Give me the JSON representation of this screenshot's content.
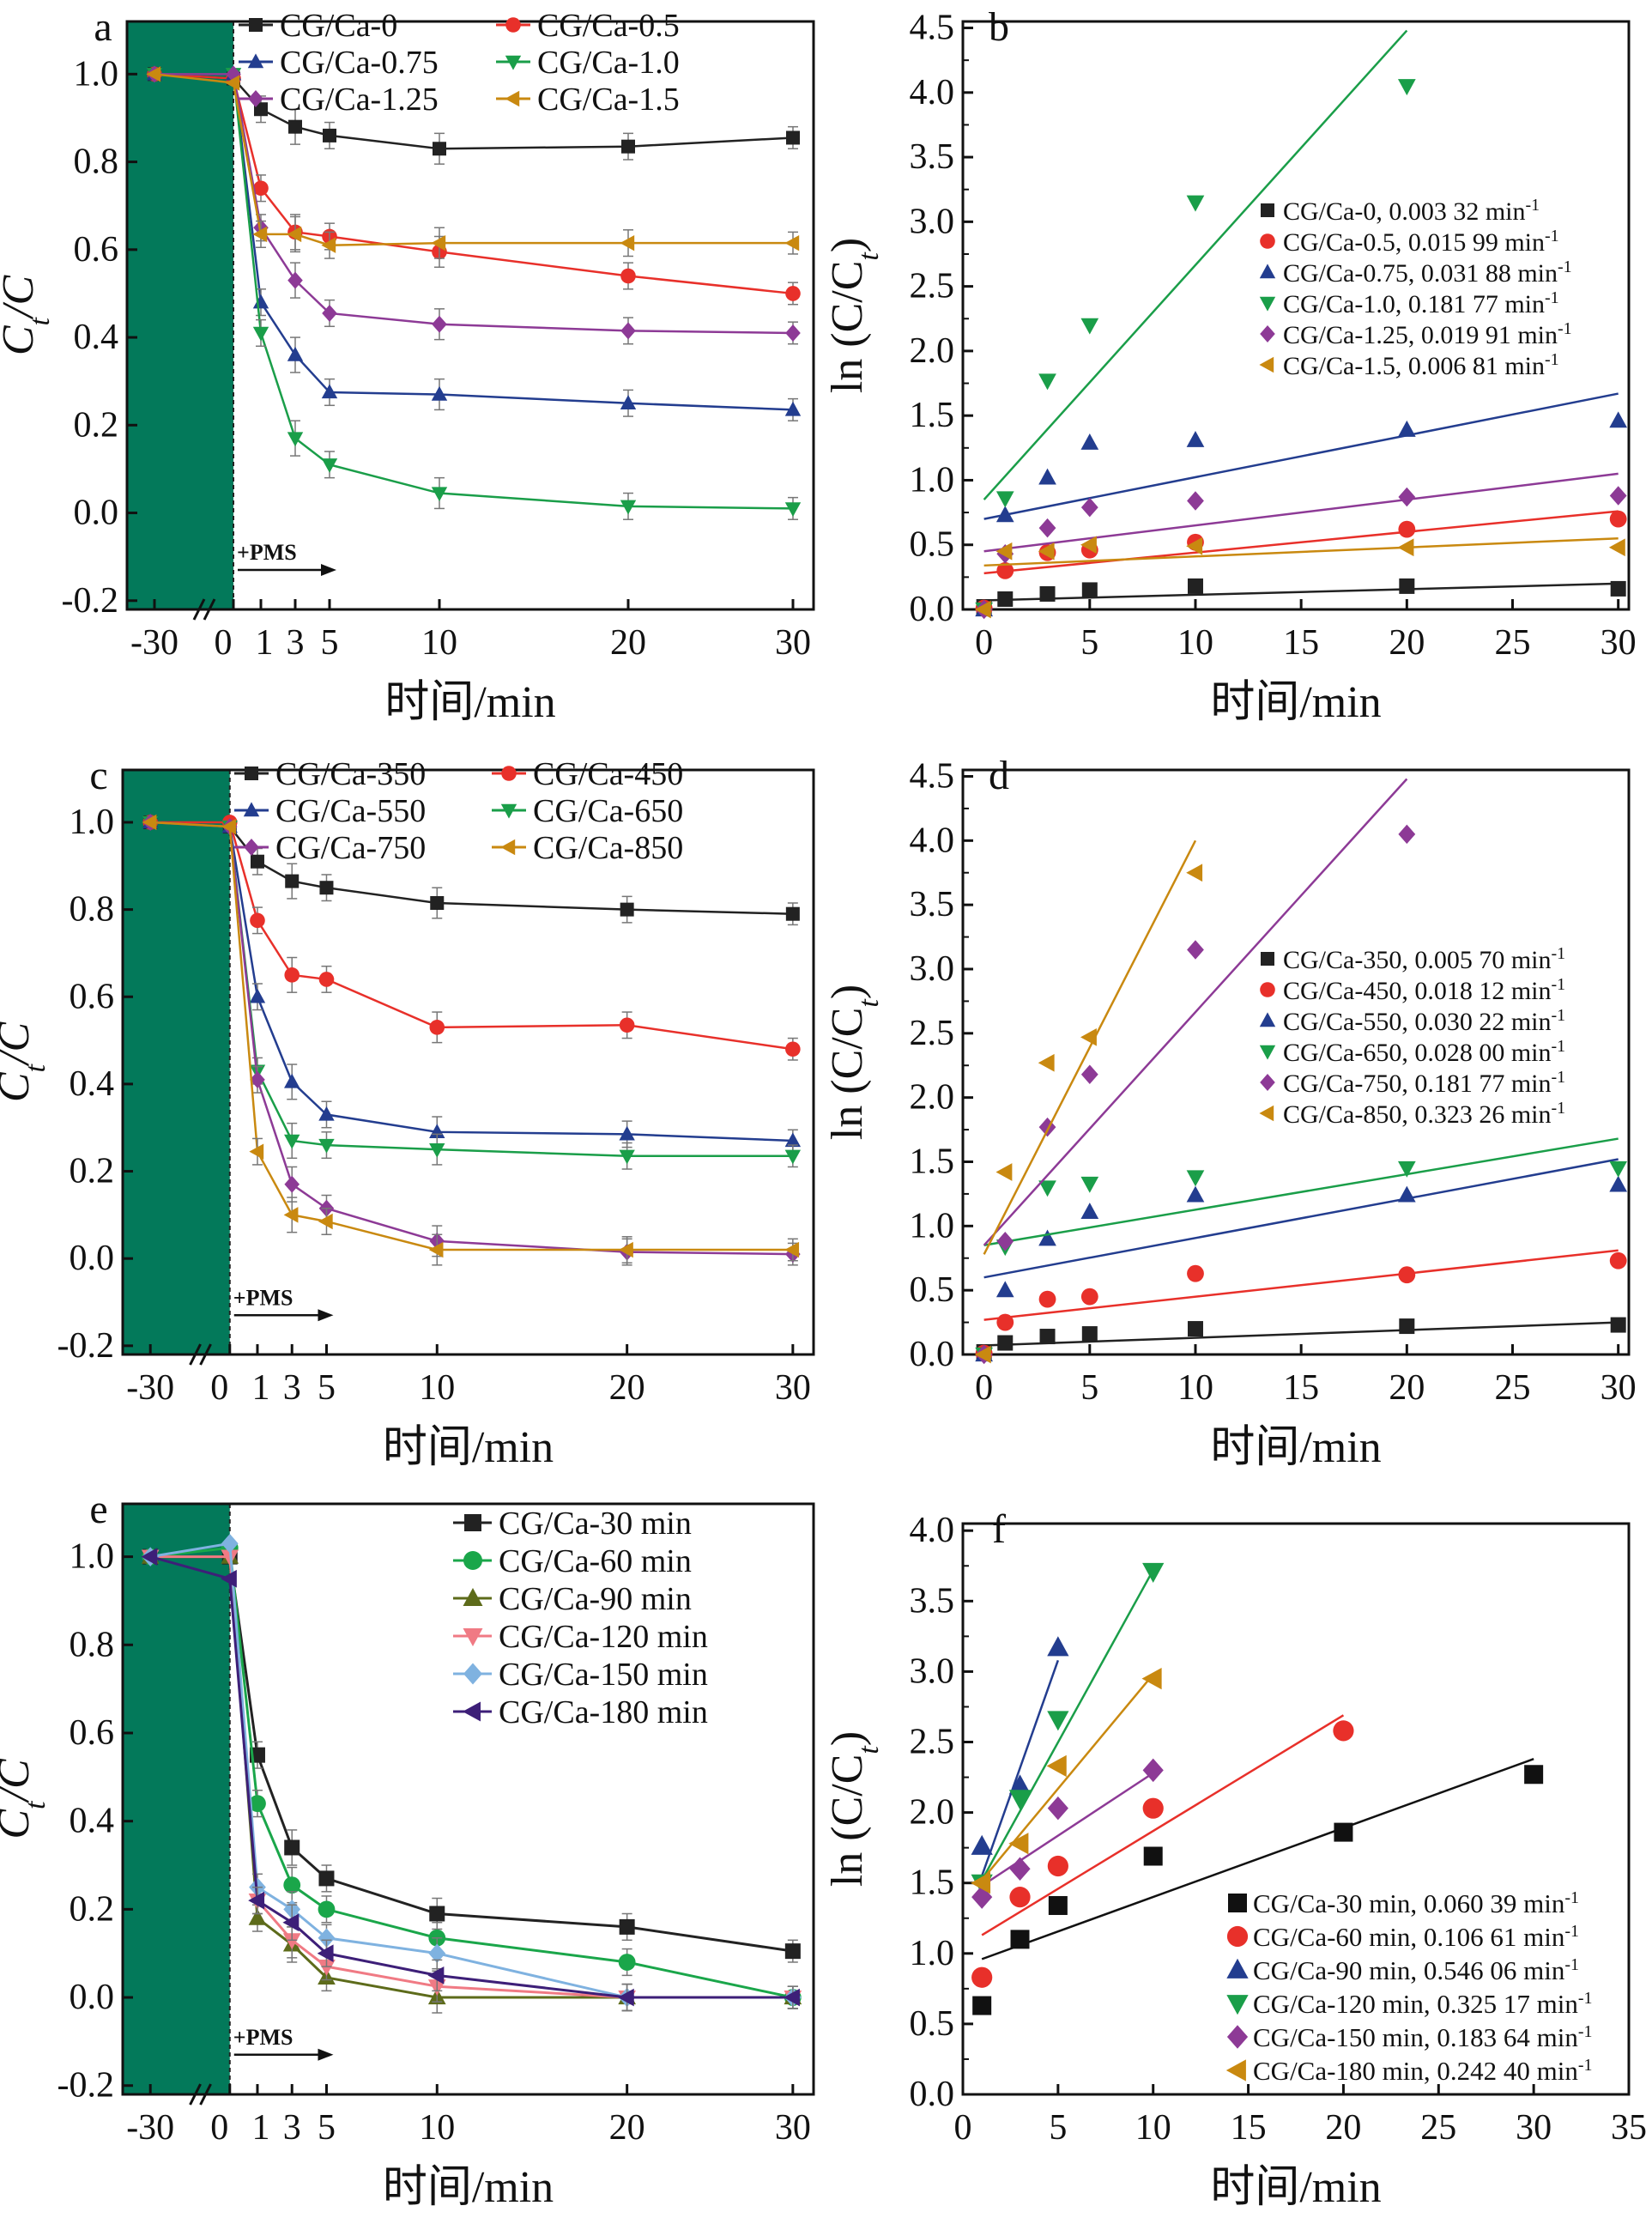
{
  "chart_data": [
    {
      "type": "line",
      "panel_label": "a",
      "xlabel": "时间/min",
      "ylabel_main": "C",
      "ylabel_sub": "t",
      "ylabel_tail": "/C",
      "x_ticks": [
        "-30",
        "0",
        "1",
        "3",
        "5",
        "10",
        "20",
        "30"
      ],
      "y_ticks": [
        "-0.2",
        "0.0",
        "0.2",
        "0.4",
        "0.6",
        "0.8",
        "1.0"
      ],
      "ylim": [
        -0.22,
        1.12
      ],
      "annotation": "+PMS",
      "x": [
        -30,
        0,
        1,
        3,
        5,
        10,
        20,
        30
      ],
      "series": [
        {
          "name": "CG/Ca-0",
          "color": "#222222",
          "marker": "square",
          "values": [
            1.0,
            0.99,
            0.92,
            0.88,
            0.86,
            0.83,
            0.835,
            0.855
          ]
        },
        {
          "name": "CG/Ca-0.5",
          "color": "#e8302a",
          "marker": "circle",
          "values": [
            1.0,
            0.99,
            0.74,
            0.64,
            0.63,
            0.595,
            0.54,
            0.5
          ]
        },
        {
          "name": "CG/Ca-0.75",
          "color": "#233d8f",
          "marker": "triangle-up",
          "values": [
            1.0,
            1.0,
            0.48,
            0.36,
            0.275,
            0.27,
            0.25,
            0.235
          ]
        },
        {
          "name": "CG/Ca-1.0",
          "color": "#1a9e49",
          "marker": "triangle-down",
          "values": [
            1.0,
            1.0,
            0.41,
            0.17,
            0.11,
            0.045,
            0.015,
            0.01
          ]
        },
        {
          "name": "CG/Ca-1.25",
          "color": "#8d3a96",
          "marker": "diamond",
          "values": [
            1.0,
            1.0,
            0.65,
            0.53,
            0.455,
            0.43,
            0.415,
            0.41
          ]
        },
        {
          "name": "CG/Ca-1.5",
          "color": "#c98910",
          "marker": "triangle-left",
          "values": [
            1.0,
            0.98,
            0.635,
            0.635,
            0.61,
            0.615,
            0.615,
            0.615
          ]
        }
      ]
    },
    {
      "type": "scatter",
      "panel_label": "b",
      "xlabel": "时间/min",
      "ylabel_main": "ln (C/C",
      "ylabel_sub": "t",
      "ylabel_tail": ")",
      "x_ticks": [
        "0",
        "5",
        "10",
        "15",
        "20",
        "25",
        "30"
      ],
      "y_ticks": [
        "0.0",
        "0.5",
        "1.0",
        "1.5",
        "2.0",
        "2.5",
        "3.0",
        "3.5",
        "4.0",
        "4.5"
      ],
      "xlim": [
        -1,
        30.5
      ],
      "ylim": [
        0,
        4.55
      ],
      "x": [
        0,
        1,
        3,
        5,
        10,
        20,
        30
      ],
      "series": [
        {
          "name": "CG/Ca-0, 0.003 32 min",
          "sup": "-1",
          "color": "#222222",
          "marker": "square",
          "values": [
            0.02,
            0.08,
            0.12,
            0.15,
            0.18,
            0.18,
            0.16
          ],
          "fit": [
            [
              0,
              0.07
            ],
            [
              30,
              0.2
            ]
          ]
        },
        {
          "name": "CG/Ca-0.5, 0.015 99 min",
          "sup": "-1",
          "color": "#e8302a",
          "marker": "circle",
          "values": [
            0.01,
            0.3,
            0.44,
            0.46,
            0.52,
            0.62,
            0.7
          ],
          "fit": [
            [
              0,
              0.28
            ],
            [
              30,
              0.76
            ]
          ]
        },
        {
          "name": "CG/Ca-0.75, 0.031 88 min",
          "sup": "-1",
          "color": "#233d8f",
          "marker": "triangle-up",
          "values": [
            0.0,
            0.73,
            1.02,
            1.29,
            1.31,
            1.39,
            1.46
          ],
          "fit": [
            [
              0,
              0.7
            ],
            [
              30,
              1.67
            ]
          ]
        },
        {
          "name": "CG/Ca-1.0, 0.181 77 min",
          "sup": "-1",
          "color": "#1a9e49",
          "marker": "triangle-down",
          "values": [
            0.0,
            0.86,
            1.77,
            2.2,
            3.15,
            4.05,
            null
          ],
          "fit": [
            [
              0,
              0.85
            ],
            [
              20,
              4.48
            ]
          ]
        },
        {
          "name": "CG/Ca-1.25, 0.019 91 min",
          "sup": "-1",
          "color": "#8d3a96",
          "marker": "diamond",
          "values": [
            0.0,
            0.43,
            0.63,
            0.79,
            0.84,
            0.87,
            0.88
          ],
          "fit": [
            [
              0,
              0.45
            ],
            [
              30,
              1.05
            ]
          ]
        },
        {
          "name": "CG/Ca-1.5, 0.006 81 min",
          "sup": "-1",
          "color": "#c98910",
          "marker": "triangle-left",
          "values": [
            0.0,
            0.45,
            0.45,
            0.5,
            0.49,
            0.48,
            0.48
          ],
          "fit": [
            [
              0,
              0.34
            ],
            [
              30,
              0.55
            ]
          ]
        }
      ]
    },
    {
      "type": "line",
      "panel_label": "c",
      "xlabel": "时间/min",
      "ylabel_main": "C",
      "ylabel_sub": "t",
      "ylabel_tail": "/C",
      "x_ticks": [
        "-30",
        "0",
        "1",
        "3",
        "5",
        "10",
        "20",
        "30"
      ],
      "y_ticks": [
        "-0.2",
        "0.0",
        "0.2",
        "0.4",
        "0.6",
        "0.8",
        "1.0"
      ],
      "ylim": [
        -0.22,
        1.12
      ],
      "annotation": "+PMS",
      "x": [
        -30,
        0,
        1,
        3,
        5,
        10,
        20,
        30
      ],
      "series": [
        {
          "name": "CG/Ca-350",
          "color": "#222222",
          "marker": "square",
          "values": [
            1.0,
            0.99,
            0.91,
            0.865,
            0.85,
            0.815,
            0.8,
            0.79
          ]
        },
        {
          "name": "CG/Ca-450",
          "color": "#e8302a",
          "marker": "circle",
          "values": [
            1.0,
            1.0,
            0.775,
            0.65,
            0.64,
            0.53,
            0.535,
            0.48
          ]
        },
        {
          "name": "CG/Ca-550",
          "color": "#233d8f",
          "marker": "triangle-up",
          "values": [
            1.0,
            0.99,
            0.6,
            0.405,
            0.33,
            0.29,
            0.285,
            0.27
          ]
        },
        {
          "name": "CG/Ca-650",
          "color": "#1a9e49",
          "marker": "triangle-down",
          "values": [
            1.0,
            0.99,
            0.43,
            0.27,
            0.26,
            0.25,
            0.235,
            0.235
          ]
        },
        {
          "name": "CG/Ca-750",
          "color": "#8d3a96",
          "marker": "diamond",
          "values": [
            1.0,
            0.99,
            0.41,
            0.17,
            0.115,
            0.04,
            0.015,
            0.01
          ]
        },
        {
          "name": "CG/Ca-850",
          "color": "#c98910",
          "marker": "triangle-left",
          "values": [
            1.0,
            0.99,
            0.245,
            0.1,
            0.085,
            0.02,
            0.02,
            0.02
          ]
        }
      ]
    },
    {
      "type": "scatter",
      "panel_label": "d",
      "xlabel": "时间/min",
      "ylabel_main": "ln (C/C",
      "ylabel_sub": "t",
      "ylabel_tail": ")",
      "x_ticks": [
        "0",
        "5",
        "10",
        "15",
        "20",
        "25",
        "30"
      ],
      "y_ticks": [
        "0.0",
        "0.5",
        "1.0",
        "1.5",
        "2.0",
        "2.5",
        "3.0",
        "3.5",
        "4.0",
        "4.5"
      ],
      "xlim": [
        -1,
        30.5
      ],
      "ylim": [
        0,
        4.55
      ],
      "x": [
        0,
        1,
        3,
        5,
        10,
        20,
        30
      ],
      "series": [
        {
          "name": "CG/Ca-350, 0.005 70 min",
          "sup": "-1",
          "color": "#222222",
          "marker": "square",
          "values": [
            0.02,
            0.09,
            0.14,
            0.16,
            0.2,
            0.22,
            0.23
          ],
          "fit": [
            [
              0,
              0.07
            ],
            [
              30,
              0.25
            ]
          ]
        },
        {
          "name": "CG/Ca-450, 0.018 12 min",
          "sup": "-1",
          "color": "#e8302a",
          "marker": "circle",
          "values": [
            0.01,
            0.25,
            0.43,
            0.45,
            0.63,
            0.62,
            0.73
          ],
          "fit": [
            [
              0,
              0.27
            ],
            [
              30,
              0.81
            ]
          ]
        },
        {
          "name": "CG/Ca-550, 0.030 22 min",
          "sup": "-1",
          "color": "#233d8f",
          "marker": "triangle-up",
          "values": [
            0.0,
            0.5,
            0.9,
            1.11,
            1.24,
            1.24,
            1.32
          ],
          "fit": [
            [
              0,
              0.6
            ],
            [
              30,
              1.52
            ]
          ]
        },
        {
          "name": "CG/Ca-650, 0.028 00 min",
          "sup": "-1",
          "color": "#1a9e49",
          "marker": "triangle-down",
          "values": [
            0.0,
            0.84,
            1.3,
            1.33,
            1.38,
            1.45,
            1.45
          ],
          "fit": [
            [
              0,
              0.85
            ],
            [
              30,
              1.68
            ]
          ]
        },
        {
          "name": "CG/Ca-750, 0.181 77 min",
          "sup": "-1",
          "color": "#8d3a96",
          "marker": "diamond",
          "values": [
            0.0,
            0.88,
            1.77,
            2.18,
            3.15,
            4.05,
            null
          ],
          "fit": [
            [
              0,
              0.85
            ],
            [
              20,
              4.48
            ]
          ]
        },
        {
          "name": "CG/Ca-850, 0.323 26 min",
          "sup": "-1",
          "color": "#c98910",
          "marker": "triangle-left",
          "values": [
            0.0,
            1.42,
            2.27,
            2.47,
            3.75,
            null,
            null
          ],
          "fit": [
            [
              0,
              0.78
            ],
            [
              10,
              4.0
            ]
          ]
        }
      ]
    },
    {
      "type": "line",
      "panel_label": "e",
      "xlabel": "时间/min",
      "ylabel_main": "C",
      "ylabel_sub": "t",
      "ylabel_tail": "/C",
      "x_ticks": [
        "-30",
        "0",
        "1",
        "3",
        "5",
        "10",
        "20",
        "30"
      ],
      "y_ticks": [
        "-0.2",
        "0.0",
        "0.2",
        "0.4",
        "0.6",
        "0.8",
        "1.0"
      ],
      "ylim": [
        -0.22,
        1.12
      ],
      "annotation": "+PMS",
      "x": [
        -30,
        0,
        1,
        3,
        5,
        10,
        20,
        30
      ],
      "series": [
        {
          "name": "CG/Ca-30 min",
          "color": "#222222",
          "marker": "square",
          "values": [
            1.0,
            1.0,
            0.55,
            0.34,
            0.27,
            0.19,
            0.16,
            0.105
          ]
        },
        {
          "name": "CG/Ca-60 min",
          "color": "#1aa64a",
          "marker": "circle",
          "values": [
            1.0,
            1.02,
            0.44,
            0.255,
            0.2,
            0.135,
            0.08,
            0.0
          ]
        },
        {
          "name": "CG/Ca-90 min",
          "color": "#5d6b1a",
          "marker": "triangle-up",
          "values": [
            1.0,
            1.0,
            0.18,
            0.12,
            0.045,
            0.0,
            0.0,
            0.0
          ]
        },
        {
          "name": "CG/Ca-120 min",
          "color": "#f07a84",
          "marker": "triangle-down",
          "values": [
            1.0,
            1.0,
            0.22,
            0.13,
            0.07,
            0.025,
            0.0,
            0.0
          ]
        },
        {
          "name": "CG/Ca-150 min",
          "color": "#7fb2e0",
          "marker": "diamond",
          "values": [
            1.0,
            1.03,
            0.25,
            0.2,
            0.135,
            0.1,
            0.0,
            0.0
          ]
        },
        {
          "name": "CG/Ca-180 min",
          "color": "#3d1f78",
          "marker": "triangle-left",
          "values": [
            1.0,
            0.95,
            0.22,
            0.17,
            0.1,
            0.05,
            0.0,
            0.0
          ]
        }
      ]
    },
    {
      "type": "scatter",
      "panel_label": "f",
      "xlabel": "时间/min",
      "ylabel_main": "ln (C/C",
      "ylabel_sub": "t",
      "ylabel_tail": ")",
      "x_ticks": [
        "0",
        "5",
        "10",
        "15",
        "20",
        "25",
        "30",
        "35"
      ],
      "y_ticks": [
        "0.0",
        "0.5",
        "1.0",
        "1.5",
        "2.0",
        "2.5",
        "3.0",
        "3.5",
        "4.0"
      ],
      "xlim": [
        0,
        35
      ],
      "ylim": [
        0,
        4.05
      ],
      "x": [
        1,
        3,
        5,
        10,
        20,
        30
      ],
      "series": [
        {
          "name": "CG/Ca-30 min, 0.060 39 min",
          "sup": "-1",
          "color": "#111111",
          "marker": "square",
          "values": [
            0.63,
            1.1,
            1.34,
            1.69,
            1.86,
            2.27
          ],
          "fit": [
            [
              1,
              0.96
            ],
            [
              30,
              2.38
            ]
          ]
        },
        {
          "name": "CG/Ca-60 min, 0.106 61 min",
          "sup": "-1",
          "color": "#e8302a",
          "marker": "circle",
          "values": [
            0.83,
            1.4,
            1.62,
            2.03,
            2.58,
            null
          ],
          "fit": [
            [
              1,
              1.13
            ],
            [
              20,
              2.69
            ]
          ]
        },
        {
          "name": "CG/Ca-90 min, 0.546 06 min",
          "sup": "-1",
          "color": "#233d8f",
          "marker": "triangle-up",
          "values": [
            1.76,
            2.19,
            3.17,
            null,
            null,
            null
          ],
          "fit": [
            [
              1,
              1.55
            ],
            [
              5,
              3.08
            ]
          ]
        },
        {
          "name": "CG/Ca-120 min, 0.325 17 min",
          "sup": "-1",
          "color": "#1a9e49",
          "marker": "triangle-down",
          "values": [
            1.5,
            2.1,
            2.66,
            3.71,
            null,
            null
          ],
          "fit": [
            [
              1,
              1.52
            ],
            [
              10,
              3.72
            ]
          ]
        },
        {
          "name": "CG/Ca-150 min, 0.183 64 min",
          "sup": "-1",
          "color": "#8d3a96",
          "marker": "diamond",
          "values": [
            1.4,
            1.6,
            2.03,
            2.3,
            null,
            null
          ],
          "fit": [
            [
              1,
              1.48
            ],
            [
              10,
              2.28
            ]
          ]
        },
        {
          "name": "CG/Ca-180 min, 0.242 40 min",
          "sup": "-1",
          "color": "#c98910",
          "marker": "triangle-left",
          "values": [
            1.5,
            1.78,
            2.33,
            2.95,
            null,
            null
          ],
          "fit": [
            [
              1,
              1.52
            ],
            [
              10,
              2.98
            ]
          ]
        }
      ]
    }
  ]
}
